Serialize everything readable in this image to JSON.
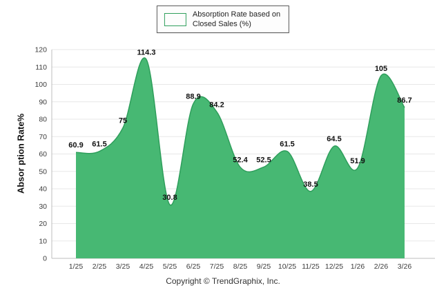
{
  "legend": {
    "line1": "Absorption Rate based on",
    "line2": "Closed Sales (%)"
  },
  "footer": "Copyright © TrendGraphix, Inc.",
  "colors": {
    "area": "#47b873",
    "area_edge": "#2e9e5b",
    "grid": "#e7e7e7",
    "axis": "#bcbcbc",
    "tick_text": "#3c3c3c",
    "point_label": "#111111"
  },
  "chart_data": {
    "type": "area",
    "title": "Absorption Rate based on Closed Sales (%)",
    "categories": [
      "1/25",
      "2/25",
      "3/25",
      "4/25",
      "5/25",
      "6/25",
      "7/25",
      "8/25",
      "9/25",
      "10/25",
      "11/25",
      "12/25",
      "1/26",
      "2/26",
      "3/26"
    ],
    "values": [
      60.9,
      61.5,
      75,
      114.3,
      30.8,
      88.9,
      84.2,
      52.4,
      52.5,
      61.5,
      38.5,
      64.5,
      51.9,
      105,
      86.7
    ],
    "xlabel": "",
    "ylabel": "Absor ption Rate%",
    "ylim": [
      0,
      120
    ],
    "ytick_step": 10,
    "grid": true,
    "legend_position": "top"
  }
}
